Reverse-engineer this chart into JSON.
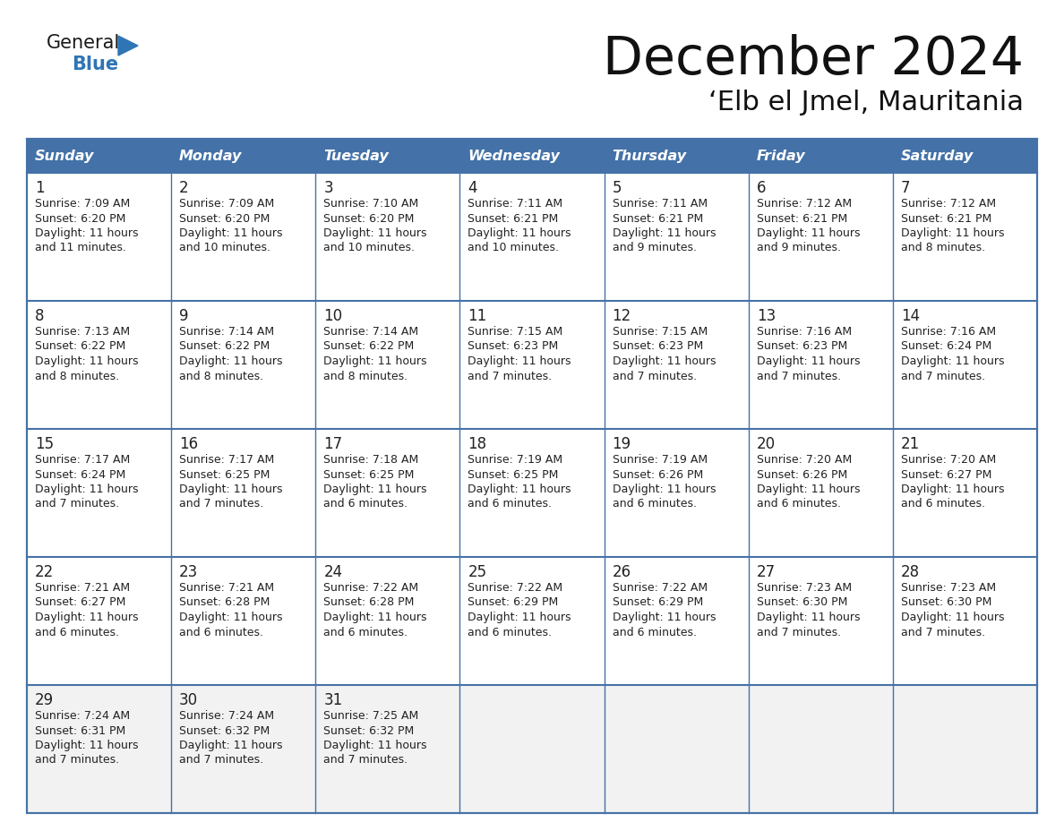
{
  "title": "December 2024",
  "subtitle": "‘Elb el Jmel, Mauritania",
  "header_bg": "#4472a8",
  "header_text": "#ffffff",
  "border_color": "#4472a8",
  "text_color": "#222222",
  "light_row_bg": "#f2f2f2",
  "white_bg": "#ffffff",
  "logo_black": "#1a1a1a",
  "logo_blue": "#2e75b6",
  "days_of_week": [
    "Sunday",
    "Monday",
    "Tuesday",
    "Wednesday",
    "Thursday",
    "Friday",
    "Saturday"
  ],
  "calendar_data": [
    [
      {
        "day": "1",
        "sunrise": "7:09 AM",
        "sunset": "6:20 PM",
        "dl1": "Daylight: 11 hours",
        "dl2": "and 11 minutes."
      },
      {
        "day": "2",
        "sunrise": "7:09 AM",
        "sunset": "6:20 PM",
        "dl1": "Daylight: 11 hours",
        "dl2": "and 10 minutes."
      },
      {
        "day": "3",
        "sunrise": "7:10 AM",
        "sunset": "6:20 PM",
        "dl1": "Daylight: 11 hours",
        "dl2": "and 10 minutes."
      },
      {
        "day": "4",
        "sunrise": "7:11 AM",
        "sunset": "6:21 PM",
        "dl1": "Daylight: 11 hours",
        "dl2": "and 10 minutes."
      },
      {
        "day": "5",
        "sunrise": "7:11 AM",
        "sunset": "6:21 PM",
        "dl1": "Daylight: 11 hours",
        "dl2": "and 9 minutes."
      },
      {
        "day": "6",
        "sunrise": "7:12 AM",
        "sunset": "6:21 PM",
        "dl1": "Daylight: 11 hours",
        "dl2": "and 9 minutes."
      },
      {
        "day": "7",
        "sunrise": "7:12 AM",
        "sunset": "6:21 PM",
        "dl1": "Daylight: 11 hours",
        "dl2": "and 8 minutes."
      }
    ],
    [
      {
        "day": "8",
        "sunrise": "7:13 AM",
        "sunset": "6:22 PM",
        "dl1": "Daylight: 11 hours",
        "dl2": "and 8 minutes."
      },
      {
        "day": "9",
        "sunrise": "7:14 AM",
        "sunset": "6:22 PM",
        "dl1": "Daylight: 11 hours",
        "dl2": "and 8 minutes."
      },
      {
        "day": "10",
        "sunrise": "7:14 AM",
        "sunset": "6:22 PM",
        "dl1": "Daylight: 11 hours",
        "dl2": "and 8 minutes."
      },
      {
        "day": "11",
        "sunrise": "7:15 AM",
        "sunset": "6:23 PM",
        "dl1": "Daylight: 11 hours",
        "dl2": "and 7 minutes."
      },
      {
        "day": "12",
        "sunrise": "7:15 AM",
        "sunset": "6:23 PM",
        "dl1": "Daylight: 11 hours",
        "dl2": "and 7 minutes."
      },
      {
        "day": "13",
        "sunrise": "7:16 AM",
        "sunset": "6:23 PM",
        "dl1": "Daylight: 11 hours",
        "dl2": "and 7 minutes."
      },
      {
        "day": "14",
        "sunrise": "7:16 AM",
        "sunset": "6:24 PM",
        "dl1": "Daylight: 11 hours",
        "dl2": "and 7 minutes."
      }
    ],
    [
      {
        "day": "15",
        "sunrise": "7:17 AM",
        "sunset": "6:24 PM",
        "dl1": "Daylight: 11 hours",
        "dl2": "and 7 minutes."
      },
      {
        "day": "16",
        "sunrise": "7:17 AM",
        "sunset": "6:25 PM",
        "dl1": "Daylight: 11 hours",
        "dl2": "and 7 minutes."
      },
      {
        "day": "17",
        "sunrise": "7:18 AM",
        "sunset": "6:25 PM",
        "dl1": "Daylight: 11 hours",
        "dl2": "and 6 minutes."
      },
      {
        "day": "18",
        "sunrise": "7:19 AM",
        "sunset": "6:25 PM",
        "dl1": "Daylight: 11 hours",
        "dl2": "and 6 minutes."
      },
      {
        "day": "19",
        "sunrise": "7:19 AM",
        "sunset": "6:26 PM",
        "dl1": "Daylight: 11 hours",
        "dl2": "and 6 minutes."
      },
      {
        "day": "20",
        "sunrise": "7:20 AM",
        "sunset": "6:26 PM",
        "dl1": "Daylight: 11 hours",
        "dl2": "and 6 minutes."
      },
      {
        "day": "21",
        "sunrise": "7:20 AM",
        "sunset": "6:27 PM",
        "dl1": "Daylight: 11 hours",
        "dl2": "and 6 minutes."
      }
    ],
    [
      {
        "day": "22",
        "sunrise": "7:21 AM",
        "sunset": "6:27 PM",
        "dl1": "Daylight: 11 hours",
        "dl2": "and 6 minutes."
      },
      {
        "day": "23",
        "sunrise": "7:21 AM",
        "sunset": "6:28 PM",
        "dl1": "Daylight: 11 hours",
        "dl2": "and 6 minutes."
      },
      {
        "day": "24",
        "sunrise": "7:22 AM",
        "sunset": "6:28 PM",
        "dl1": "Daylight: 11 hours",
        "dl2": "and 6 minutes."
      },
      {
        "day": "25",
        "sunrise": "7:22 AM",
        "sunset": "6:29 PM",
        "dl1": "Daylight: 11 hours",
        "dl2": "and 6 minutes."
      },
      {
        "day": "26",
        "sunrise": "7:22 AM",
        "sunset": "6:29 PM",
        "dl1": "Daylight: 11 hours",
        "dl2": "and 6 minutes."
      },
      {
        "day": "27",
        "sunrise": "7:23 AM",
        "sunset": "6:30 PM",
        "dl1": "Daylight: 11 hours",
        "dl2": "and 7 minutes."
      },
      {
        "day": "28",
        "sunrise": "7:23 AM",
        "sunset": "6:30 PM",
        "dl1": "Daylight: 11 hours",
        "dl2": "and 7 minutes."
      }
    ],
    [
      {
        "day": "29",
        "sunrise": "7:24 AM",
        "sunset": "6:31 PM",
        "dl1": "Daylight: 11 hours",
        "dl2": "and 7 minutes."
      },
      {
        "day": "30",
        "sunrise": "7:24 AM",
        "sunset": "6:32 PM",
        "dl1": "Daylight: 11 hours",
        "dl2": "and 7 minutes."
      },
      {
        "day": "31",
        "sunrise": "7:25 AM",
        "sunset": "6:32 PM",
        "dl1": "Daylight: 11 hours",
        "dl2": "and 7 minutes."
      },
      null,
      null,
      null,
      null
    ]
  ]
}
